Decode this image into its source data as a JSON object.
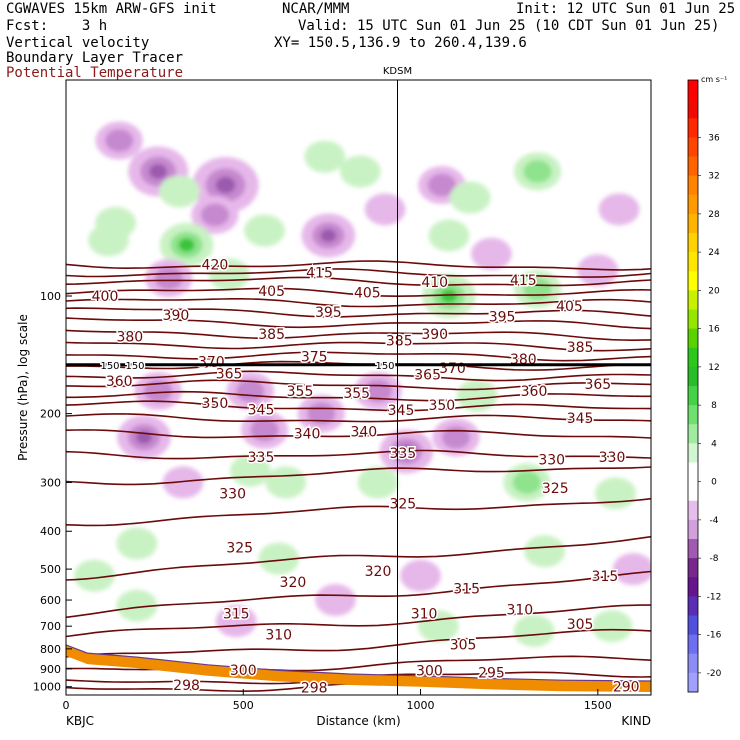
{
  "header": {
    "title_line1": "CGWAVES 15km ARW-GFS init",
    "fcst_line": "Fcst:    3 h",
    "field_vv": "Vertical velocity",
    "field_blt": "Boundary Layer Tracer",
    "field_theta": "Potential Temperature",
    "center": "NCAR/MMM",
    "init": "Init: 12 UTC Sun 01 Jun 25",
    "valid": "Valid: 15 UTC Sun 01 Jun 25 (10 CDT Sun 01 Jun 25)",
    "xy": "XY= 150.5,136.9 to 260.4,139.6"
  },
  "colors": {
    "theta": "#6b0a0a",
    "tropopause": "#000000",
    "terrain": "#f08c00",
    "sinking_light": "#e6b8ea",
    "sinking_mid": "#c689cf",
    "sinking_dark": "#9b5aae",
    "rising_light": "#c9f2c4",
    "rising_mid": "#8ee38c",
    "rising_dark": "#39c43a"
  },
  "chart_data": {
    "type": "cross-section",
    "xlabel": "Distance (km)",
    "ylabel": "Pressure (hPa), log scale",
    "xlim": [
      0,
      1650
    ],
    "ylim": [
      1050,
      28
    ],
    "x_ticks": [
      0,
      500,
      1000,
      1500
    ],
    "y_ticks": [
      100,
      200,
      300,
      400,
      500,
      600,
      700,
      800,
      900,
      1000
    ],
    "x_end_labels": [
      "KBJC",
      "KIND"
    ],
    "vertical_marker": {
      "label": "KDSM",
      "x": 935
    },
    "tropopause_line": {
      "p": 150,
      "labels": [
        "150",
        "150",
        "150"
      ]
    },
    "colorbar": {
      "unit": "cm s⁻¹",
      "ticks": [
        "36",
        "32",
        "28",
        "24",
        "20",
        "16",
        "12",
        "8",
        "4",
        "0",
        "-4",
        "-8",
        "-12",
        "-16",
        "-20"
      ],
      "levels": [
        {
          "v": 40,
          "c": "#ff0000"
        },
        {
          "v": 38,
          "c": "#f20a00"
        },
        {
          "v": 36,
          "c": "#ff2800"
        },
        {
          "v": 34,
          "c": "#ff4600"
        },
        {
          "v": 32,
          "c": "#ff6400"
        },
        {
          "v": 30,
          "c": "#ff8200"
        },
        {
          "v": 28,
          "c": "#ff9a00"
        },
        {
          "v": 26,
          "c": "#ffb400"
        },
        {
          "v": 24,
          "c": "#ffd200"
        },
        {
          "v": 22,
          "c": "#ffe600"
        },
        {
          "v": 20,
          "c": "#ffff00"
        },
        {
          "v": 18,
          "c": "#c8f000"
        },
        {
          "v": 16,
          "c": "#96e600"
        },
        {
          "v": 14,
          "c": "#5ad200"
        },
        {
          "v": 12,
          "c": "#2dc81e"
        },
        {
          "v": 10,
          "c": "#28be28"
        },
        {
          "v": 8,
          "c": "#46d246"
        },
        {
          "v": 6,
          "c": "#6ee06e"
        },
        {
          "v": 4,
          "c": "#a0eba0"
        },
        {
          "v": 2,
          "c": "#d2f5d2"
        },
        {
          "v": 0,
          "c": "#ffffff"
        },
        {
          "v": -2,
          "c": "#ffffff"
        },
        {
          "v": -4,
          "c": "#e6beeb"
        },
        {
          "v": -6,
          "c": "#d2a0dc"
        },
        {
          "v": -8,
          "c": "#a05aaf"
        },
        {
          "v": -10,
          "c": "#78288c"
        },
        {
          "v": -12,
          "c": "#64148c"
        },
        {
          "v": -14,
          "c": "#5a2db4"
        },
        {
          "v": -16,
          "c": "#5050dc"
        },
        {
          "v": -18,
          "c": "#6e6ef0"
        },
        {
          "v": -20,
          "c": "#8c8cf5"
        },
        {
          "v": -22,
          "c": "#a0a0ff"
        }
      ]
    },
    "velocity_blobs": [
      {
        "x": 150,
        "p": 40,
        "w": -6
      },
      {
        "x": 260,
        "p": 48,
        "w": -10
      },
      {
        "x": 450,
        "p": 52,
        "w": -12
      },
      {
        "x": 420,
        "p": 62,
        "w": -6
      },
      {
        "x": 140,
        "p": 65,
        "w": 4
      },
      {
        "x": 320,
        "p": 54,
        "w": 4
      },
      {
        "x": 730,
        "p": 44,
        "w": 4
      },
      {
        "x": 830,
        "p": 48,
        "w": 4
      },
      {
        "x": 900,
        "p": 60,
        "w": -4
      },
      {
        "x": 1060,
        "p": 52,
        "w": -6
      },
      {
        "x": 1140,
        "p": 56,
        "w": 4
      },
      {
        "x": 1330,
        "p": 48,
        "w": 6
      },
      {
        "x": 1560,
        "p": 60,
        "w": -4
      },
      {
        "x": 740,
        "p": 70,
        "w": -8
      },
      {
        "x": 340,
        "p": 74,
        "w": 8
      },
      {
        "x": 120,
        "p": 72,
        "w": 4
      },
      {
        "x": 560,
        "p": 68,
        "w": 4
      },
      {
        "x": 460,
        "p": 88,
        "w": 4
      },
      {
        "x": 1080,
        "p": 70,
        "w": 4
      },
      {
        "x": 1200,
        "p": 78,
        "w": -4
      },
      {
        "x": 1330,
        "p": 96,
        "w": 6
      },
      {
        "x": 1080,
        "p": 100,
        "w": 8
      },
      {
        "x": 1500,
        "p": 86,
        "w": -4
      },
      {
        "x": 290,
        "p": 90,
        "w": -6
      },
      {
        "x": 260,
        "p": 175,
        "w": -6
      },
      {
        "x": 220,
        "p": 230,
        "w": -8
      },
      {
        "x": 520,
        "p": 175,
        "w": -6
      },
      {
        "x": 560,
        "p": 220,
        "w": -6
      },
      {
        "x": 720,
        "p": 200,
        "w": -6
      },
      {
        "x": 880,
        "p": 175,
        "w": -6
      },
      {
        "x": 960,
        "p": 250,
        "w": -8
      },
      {
        "x": 1100,
        "p": 230,
        "w": -6
      },
      {
        "x": 1160,
        "p": 180,
        "w": 4
      },
      {
        "x": 330,
        "p": 300,
        "w": -4
      },
      {
        "x": 520,
        "p": 280,
        "w": 4
      },
      {
        "x": 620,
        "p": 300,
        "w": 4
      },
      {
        "x": 880,
        "p": 300,
        "w": 4
      },
      {
        "x": 1300,
        "p": 300,
        "w": 6
      },
      {
        "x": 1550,
        "p": 320,
        "w": 4
      },
      {
        "x": 1350,
        "p": 450,
        "w": 4
      },
      {
        "x": 1600,
        "p": 500,
        "w": -4
      },
      {
        "x": 80,
        "p": 520,
        "w": 4
      },
      {
        "x": 200,
        "p": 430,
        "w": 4
      },
      {
        "x": 600,
        "p": 470,
        "w": 4
      },
      {
        "x": 1000,
        "p": 520,
        "w": -4
      },
      {
        "x": 200,
        "p": 620,
        "w": 4
      },
      {
        "x": 480,
        "p": 680,
        "w": -4
      },
      {
        "x": 760,
        "p": 600,
        "w": -4
      },
      {
        "x": 1050,
        "p": 700,
        "w": 4
      },
      {
        "x": 1320,
        "p": 720,
        "w": 4
      },
      {
        "x": 1540,
        "p": 700,
        "w": 4
      }
    ],
    "theta_levels": [
      {
        "theta": 420,
        "pL": 83,
        "pR": 84
      },
      {
        "theta": 415,
        "pL": 87,
        "pR": 88
      },
      {
        "theta": 410,
        "pL": 91,
        "pR": 93
      },
      {
        "theta": 405,
        "pL": 97,
        "pR": 99
      },
      {
        "theta": 400,
        "pL": 103,
        "pR": 105
      },
      {
        "theta": 395,
        "pL": 109,
        "pR": 112
      },
      {
        "theta": 390,
        "pL": 116,
        "pR": 119
      },
      {
        "theta": 385,
        "pL": 124,
        "pR": 127
      },
      {
        "theta": 380,
        "pL": 132,
        "pR": 135
      },
      {
        "theta": 375,
        "pL": 141,
        "pR": 143
      },
      {
        "theta": 370,
        "pL": 150,
        "pR": 151
      },
      {
        "theta": 365,
        "pL": 159,
        "pR": 161
      },
      {
        "theta": 360,
        "pL": 168,
        "pR": 170
      },
      {
        "theta": 355,
        "pL": 180,
        "pR": 182
      },
      {
        "theta": 350,
        "pL": 190,
        "pR": 195
      },
      {
        "theta": 345,
        "pL": 205,
        "pR": 208
      },
      {
        "theta": 340,
        "pL": 225,
        "pR": 228
      },
      {
        "theta": 335,
        "pL": 255,
        "pR": 255
      },
      {
        "theta": 330,
        "pL": 300,
        "pR": 270
      },
      {
        "theta": 325,
        "pL": 380,
        "pR": 330
      },
      {
        "theta": 320,
        "pL": 520,
        "pR": 420
      },
      {
        "theta": 315,
        "pL": 650,
        "pR": 520
      },
      {
        "theta": 310,
        "pL": 740,
        "pR": 630
      },
      {
        "theta": 305,
        "pL": 850,
        "pR": 720
      },
      {
        "theta": 300,
        "pL": 920,
        "pR": 840
      },
      {
        "theta": 295,
        "pL": 980,
        "pR": 920
      },
      {
        "theta": 290,
        "pL": 1010,
        "pR": 990
      }
    ],
    "theta_labels": [
      {
        "text": "420",
        "x": 420,
        "p": 83
      },
      {
        "text": "415",
        "x": 715,
        "p": 87
      },
      {
        "text": "415",
        "x": 1290,
        "p": 91
      },
      {
        "text": "410",
        "x": 1040,
        "p": 92
      },
      {
        "text": "405",
        "x": 580,
        "p": 97
      },
      {
        "text": "405",
        "x": 850,
        "p": 98
      },
      {
        "text": "405",
        "x": 1420,
        "p": 106
      },
      {
        "text": "400",
        "x": 110,
        "p": 100
      },
      {
        "text": "395",
        "x": 740,
        "p": 110
      },
      {
        "text": "395",
        "x": 1230,
        "p": 113
      },
      {
        "text": "390",
        "x": 310,
        "p": 112
      },
      {
        "text": "390",
        "x": 1040,
        "p": 125
      },
      {
        "text": "385",
        "x": 580,
        "p": 125
      },
      {
        "text": "385",
        "x": 940,
        "p": 130
      },
      {
        "text": "385",
        "x": 1450,
        "p": 135
      },
      {
        "text": "380",
        "x": 180,
        "p": 127
      },
      {
        "text": "380",
        "x": 1290,
        "p": 145
      },
      {
        "text": "375",
        "x": 700,
        "p": 143
      },
      {
        "text": "370",
        "x": 410,
        "p": 147
      },
      {
        "text": "370",
        "x": 1090,
        "p": 153
      },
      {
        "text": "365",
        "x": 460,
        "p": 158
      },
      {
        "text": "365",
        "x": 1020,
        "p": 159
      },
      {
        "text": "365",
        "x": 1500,
        "p": 168
      },
      {
        "text": "360",
        "x": 150,
        "p": 165
      },
      {
        "text": "360",
        "x": 1320,
        "p": 175
      },
      {
        "text": "355",
        "x": 660,
        "p": 175
      },
      {
        "text": "355",
        "x": 820,
        "p": 177
      },
      {
        "text": "350",
        "x": 420,
        "p": 188
      },
      {
        "text": "350",
        "x": 1060,
        "p": 190
      },
      {
        "text": "345",
        "x": 550,
        "p": 195
      },
      {
        "text": "345",
        "x": 945,
        "p": 196
      },
      {
        "text": "345",
        "x": 1450,
        "p": 205
      },
      {
        "text": "340",
        "x": 680,
        "p": 225
      },
      {
        "text": "340",
        "x": 840,
        "p": 222
      },
      {
        "text": "335",
        "x": 950,
        "p": 252
      },
      {
        "text": "335",
        "x": 550,
        "p": 258
      },
      {
        "text": "330",
        "x": 1370,
        "p": 262
      },
      {
        "text": "330",
        "x": 1540,
        "p": 258
      },
      {
        "text": "330",
        "x": 470,
        "p": 320
      },
      {
        "text": "325",
        "x": 950,
        "p": 340
      },
      {
        "text": "325",
        "x": 1380,
        "p": 310
      },
      {
        "text": "325",
        "x": 490,
        "p": 440
      },
      {
        "text": "320",
        "x": 640,
        "p": 540
      },
      {
        "text": "320",
        "x": 880,
        "p": 505
      },
      {
        "text": "315",
        "x": 480,
        "p": 650
      },
      {
        "text": "315",
        "x": 1130,
        "p": 560
      },
      {
        "text": "315",
        "x": 1520,
        "p": 520
      },
      {
        "text": "310",
        "x": 600,
        "p": 735
      },
      {
        "text": "310",
        "x": 1010,
        "p": 650
      },
      {
        "text": "310",
        "x": 1280,
        "p": 635
      },
      {
        "text": "305",
        "x": 1120,
        "p": 780
      },
      {
        "text": "305",
        "x": 1450,
        "p": 690
      },
      {
        "text": "300",
        "x": 500,
        "p": 905
      },
      {
        "text": "300",
        "x": 1025,
        "p": 910
      },
      {
        "text": "298",
        "x": 340,
        "p": 990
      },
      {
        "text": "298",
        "x": 700,
        "p": 1005
      },
      {
        "text": "295",
        "x": 1200,
        "p": 920
      },
      {
        "text": "290",
        "x": 1580,
        "p": 1000
      }
    ],
    "terrain": [
      {
        "x": 0,
        "p": 800
      },
      {
        "x": 60,
        "p": 840
      },
      {
        "x": 200,
        "p": 860
      },
      {
        "x": 400,
        "p": 900
      },
      {
        "x": 600,
        "p": 930
      },
      {
        "x": 800,
        "p": 950
      },
      {
        "x": 1000,
        "p": 960
      },
      {
        "x": 1200,
        "p": 975
      },
      {
        "x": 1400,
        "p": 985
      },
      {
        "x": 1650,
        "p": 990
      }
    ]
  }
}
